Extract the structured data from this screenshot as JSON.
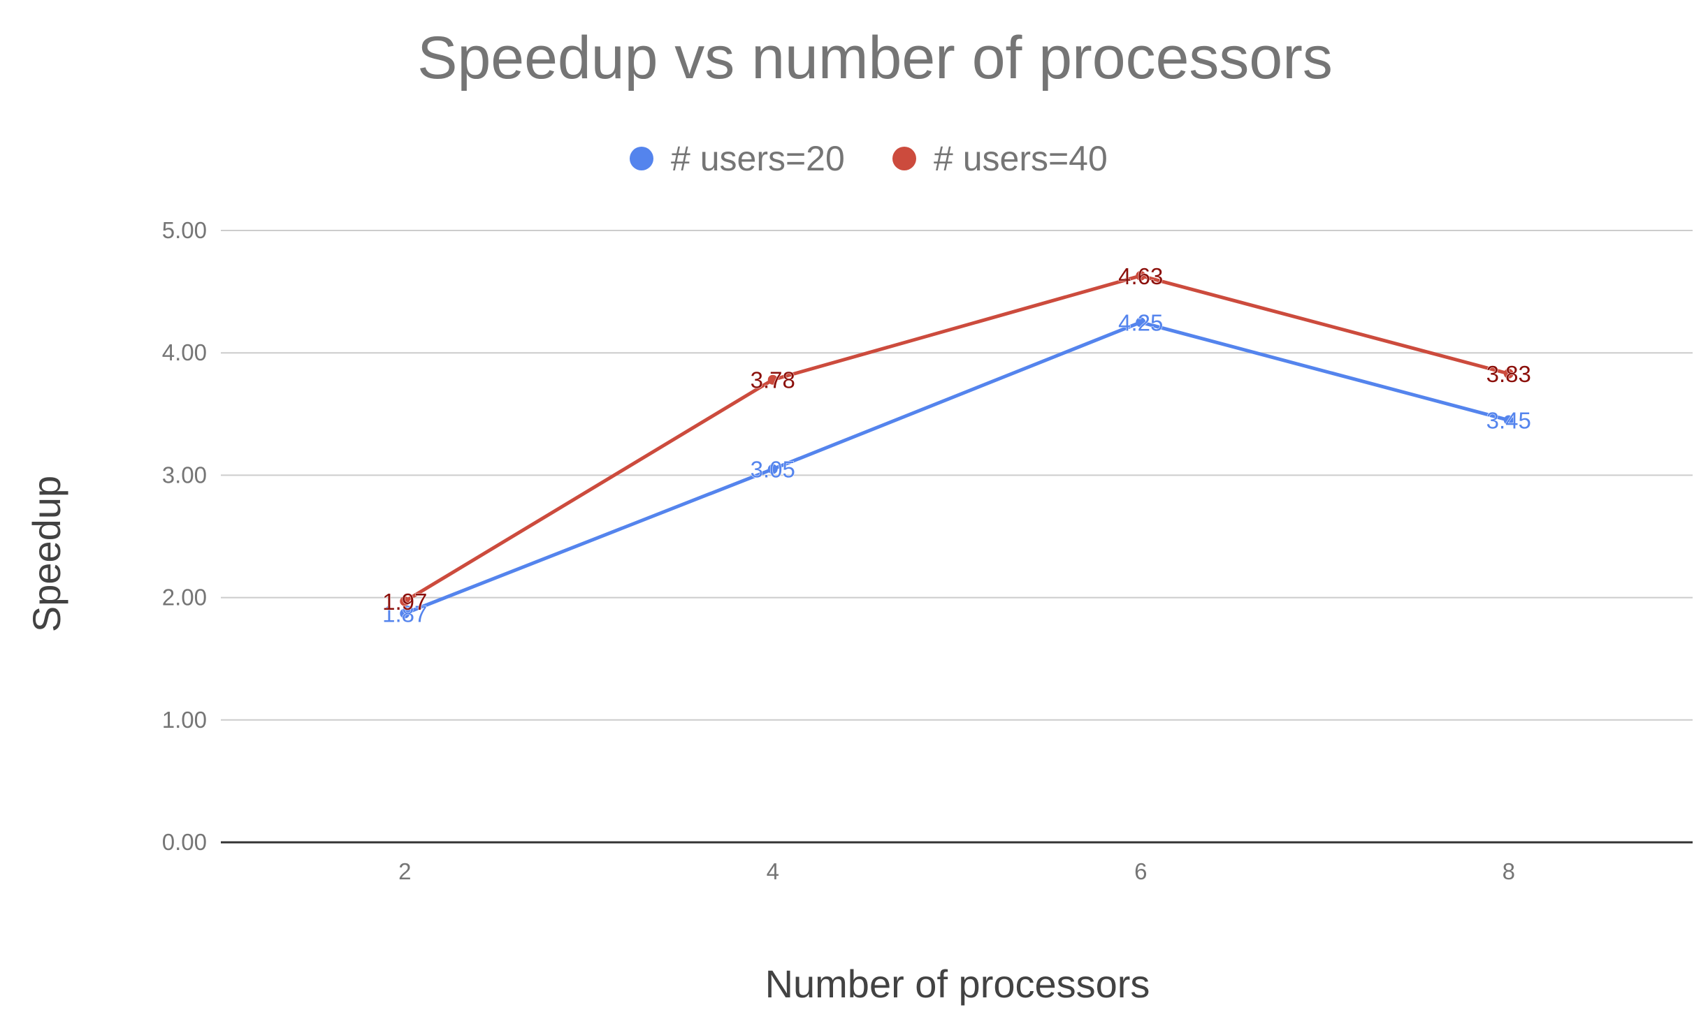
{
  "chart_data": {
    "type": "line",
    "title": "Speedup  vs number of processors",
    "xlabel": "Number of processors",
    "ylabel": "Speedup",
    "x": [
      2,
      4,
      6,
      8
    ],
    "x_tick_labels": [
      "2",
      "4",
      "6",
      "8"
    ],
    "ylim": [
      0,
      5
    ],
    "y_ticks": [
      0,
      1,
      2,
      3,
      4,
      5
    ],
    "y_tick_labels": [
      "0.00",
      "1.00",
      "2.00",
      "3.00",
      "4.00",
      "5.00"
    ],
    "grid": true,
    "legend_position": "top",
    "series": [
      {
        "name": "# users=20",
        "color": "#5484ed",
        "label_color": "#5484ed",
        "values": [
          1.87,
          3.05,
          4.25,
          3.45
        ],
        "labels": [
          "1.87",
          "3.05",
          "4.25",
          "3.45"
        ]
      },
      {
        "name": "# users=40",
        "color": "#cc4b3d",
        "label_color": "#8b0f0a",
        "values": [
          1.97,
          3.78,
          4.63,
          3.83
        ],
        "labels": [
          "1.97",
          "3.78",
          "4.63",
          "3.83"
        ]
      }
    ]
  }
}
